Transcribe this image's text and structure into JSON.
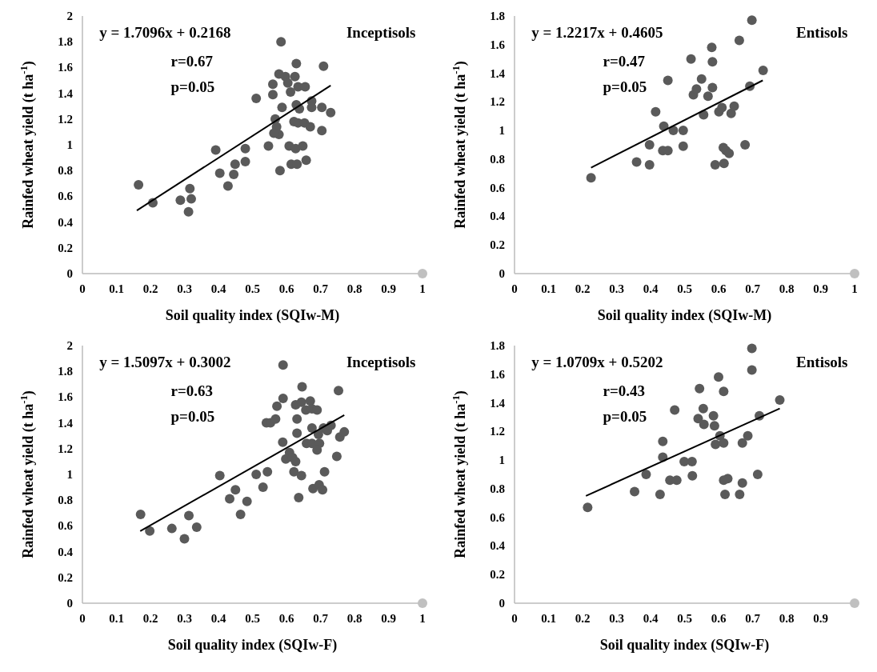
{
  "chart_data": [
    {
      "type": "scatter",
      "xlabel": "Soil quality  index (SQIw-M)",
      "ylabel": "Rainfed wheat yield (t ha$^{-1}$)",
      "annotations": [
        "y = 1.7096x + 0.2168",
        "r=0.67",
        "p=0.05",
        "Inceptisols"
      ],
      "xlim": [
        0,
        1
      ],
      "xticks": [
        0,
        0.1,
        0.2,
        0.3,
        0.4,
        0.5,
        0.6,
        0.7,
        0.8,
        0.9,
        1
      ],
      "ylim": [
        0,
        2
      ],
      "yticks": [
        0,
        0.2,
        0.4,
        0.6,
        0.8,
        1,
        1.2,
        1.4,
        1.6,
        1.8,
        2
      ],
      "series": [
        {
          "type": "scatter",
          "marker": "circle",
          "color": "#5a5a5a",
          "x": [
            0.165,
            0.207,
            0.288,
            0.316,
            0.32,
            0.312,
            0.392,
            0.404,
            0.445,
            0.449,
            0.428,
            0.479,
            0.479,
            0.511,
            0.547,
            0.56,
            0.56,
            0.578,
            0.584,
            0.587,
            0.567,
            0.571,
            0.578,
            0.563,
            0.581,
            0.597,
            0.604,
            0.612,
            0.625,
            0.629,
            0.634,
            0.655,
            0.629,
            0.638,
            0.622,
            0.634,
            0.653,
            0.67,
            0.674,
            0.674,
            0.704,
            0.73,
            0.704,
            0.709,
            0.608,
            0.627,
            0.648,
            0.614,
            0.631,
            0.658
          ],
          "values": [
            0.69,
            0.55,
            0.57,
            0.66,
            0.58,
            0.48,
            0.96,
            0.78,
            0.77,
            0.85,
            0.68,
            0.97,
            0.87,
            1.36,
            0.99,
            1.47,
            1.39,
            1.55,
            1.8,
            1.29,
            1.2,
            1.14,
            1.08,
            1.09,
            0.8,
            1.53,
            1.48,
            1.41,
            1.53,
            1.63,
            1.45,
            1.45,
            1.31,
            1.28,
            1.18,
            1.17,
            1.17,
            1.14,
            1.34,
            1.29,
            1.29,
            1.25,
            1.11,
            1.61,
            0.99,
            0.97,
            0.99,
            0.85,
            0.85,
            0.88
          ]
        },
        {
          "type": "line",
          "color": "#000000",
          "x": [
            0.16,
            0.73
          ],
          "values": [
            0.49,
            1.46
          ]
        },
        {
          "type": "scatter",
          "color": "#c0c0c0",
          "x": [
            1
          ],
          "values": [
            0
          ]
        }
      ]
    },
    {
      "type": "scatter",
      "xlabel": "Soil quality  index (SQIw-M)",
      "ylabel": "Rainfed wheat yield (t ha$^{-1}$)",
      "annotations": [
        "y = 1.2217x + 0.4605",
        "r=0.47",
        "p=0.05",
        "Entisols"
      ],
      "xlim": [
        0,
        1
      ],
      "xticks": [
        0,
        0.1,
        0.2,
        0.3,
        0.4,
        0.5,
        0.6,
        0.7,
        0.8,
        0.9,
        1
      ],
      "ylim": [
        0,
        1.8
      ],
      "yticks": [
        0,
        0.2,
        0.4,
        0.6,
        0.8,
        1,
        1.2,
        1.4,
        1.6,
        1.8
      ],
      "series": [
        {
          "type": "scatter",
          "marker": "circle",
          "color": "#5a5a5a",
          "x": [
            0.225,
            0.359,
            0.397,
            0.397,
            0.415,
            0.439,
            0.436,
            0.451,
            0.451,
            0.467,
            0.496,
            0.496,
            0.519,
            0.526,
            0.535,
            0.55,
            0.556,
            0.569,
            0.58,
            0.582,
            0.582,
            0.59,
            0.616,
            0.601,
            0.61,
            0.614,
            0.622,
            0.631,
            0.637,
            0.646,
            0.661,
            0.678,
            0.692,
            0.698,
            0.731
          ],
          "values": [
            0.67,
            0.78,
            0.76,
            0.9,
            1.13,
            1.03,
            0.86,
            0.86,
            1.35,
            1.0,
            1.0,
            0.89,
            1.5,
            1.25,
            1.29,
            1.36,
            1.11,
            1.24,
            1.58,
            1.48,
            1.3,
            0.76,
            0.77,
            1.13,
            1.16,
            0.88,
            0.86,
            0.84,
            1.12,
            1.17,
            1.63,
            0.9,
            1.31,
            1.77,
            1.42
          ]
        },
        {
          "type": "line",
          "color": "#000000",
          "x": [
            0.225,
            0.73
          ],
          "values": [
            0.74,
            1.35
          ]
        },
        {
          "type": "scatter",
          "color": "#c0c0c0",
          "x": [
            1
          ],
          "values": [
            0
          ]
        }
      ]
    },
    {
      "type": "scatter",
      "xlabel": "Soil quality  index (SQIw-F)",
      "ylabel": "Rainfed wheat yield (t ha$^{-1}$)",
      "annotations": [
        "y = 1.5097x + 0.3002",
        "r=0.63",
        "p=0.05",
        "Inceptisols"
      ],
      "xlim": [
        0,
        1
      ],
      "xticks": [
        0,
        0.1,
        0.2,
        0.3,
        0.4,
        0.5,
        0.6,
        0.7,
        0.8,
        0.9,
        1
      ],
      "ylim": [
        0,
        2
      ],
      "yticks": [
        0,
        0.2,
        0.4,
        0.6,
        0.8,
        1,
        1.2,
        1.4,
        1.6,
        1.8,
        2
      ],
      "series": [
        {
          "type": "scatter",
          "marker": "circle",
          "color": "#5a5a5a",
          "x": [
            0.171,
            0.198,
            0.263,
            0.3,
            0.313,
            0.336,
            0.404,
            0.433,
            0.45,
            0.465,
            0.484,
            0.511,
            0.531,
            0.544,
            0.541,
            0.553,
            0.568,
            0.572,
            0.59,
            0.59,
            0.589,
            0.598,
            0.609,
            0.618,
            0.627,
            0.622,
            0.644,
            0.636,
            0.631,
            0.631,
            0.627,
            0.646,
            0.644,
            0.657,
            0.67,
            0.675,
            0.69,
            0.659,
            0.675,
            0.675,
            0.694,
            0.697,
            0.69,
            0.709,
            0.72,
            0.731,
            0.712,
            0.678,
            0.696,
            0.706,
            0.748,
            0.753,
            0.757,
            0.77
          ],
          "values": [
            0.69,
            0.56,
            0.58,
            0.5,
            0.68,
            0.59,
            0.99,
            0.81,
            0.88,
            0.69,
            0.79,
            1.0,
            0.9,
            1.02,
            1.4,
            1.4,
            1.43,
            1.53,
            1.85,
            1.59,
            1.25,
            1.12,
            1.17,
            1.13,
            1.1,
            1.02,
            0.99,
            0.82,
            1.43,
            1.32,
            1.54,
            1.68,
            1.56,
            1.5,
            1.57,
            1.51,
            1.5,
            1.24,
            1.24,
            1.36,
            1.31,
            1.24,
            1.19,
            1.36,
            1.34,
            1.38,
            1.02,
            0.89,
            0.92,
            0.88,
            1.14,
            1.65,
            1.29,
            1.33
          ]
        },
        {
          "type": "line",
          "color": "#000000",
          "x": [
            0.17,
            0.77
          ],
          "values": [
            0.56,
            1.46
          ]
        },
        {
          "type": "scatter",
          "color": "#c0c0c0",
          "x": [
            1
          ],
          "values": [
            0
          ]
        }
      ]
    },
    {
      "type": "scatter",
      "xlabel": "Soil quality  index (SQIw-F)",
      "ylabel": "Rainfed wheat yield (t ha$^{-1}$)",
      "annotations": [
        "y = 1.0709x + 0.5202",
        "r=0.43",
        "p=0.05",
        "Entisols"
      ],
      "xlim": [
        0,
        1
      ],
      "xticks": [
        0,
        0.1,
        0.2,
        0.3,
        0.4,
        0.5,
        0.6,
        0.7,
        0.8,
        0.9
      ],
      "ylim": [
        0,
        1.8
      ],
      "yticks": [
        0,
        0.2,
        0.4,
        0.6,
        0.8,
        1,
        1.2,
        1.4,
        1.6,
        1.8
      ],
      "series": [
        {
          "type": "scatter",
          "marker": "circle",
          "color": "#5a5a5a",
          "x": [
            0.215,
            0.353,
            0.428,
            0.387,
            0.436,
            0.436,
            0.457,
            0.477,
            0.471,
            0.499,
            0.522,
            0.523,
            0.544,
            0.54,
            0.557,
            0.555,
            0.585,
            0.588,
            0.6,
            0.615,
            0.591,
            0.604,
            0.615,
            0.615,
            0.627,
            0.619,
            0.662,
            0.67,
            0.67,
            0.686,
            0.698,
            0.698,
            0.715,
            0.72,
            0.78
          ],
          "values": [
            0.67,
            0.78,
            0.76,
            0.9,
            1.13,
            1.02,
            0.86,
            0.86,
            1.35,
            0.99,
            0.99,
            0.89,
            1.5,
            1.29,
            1.25,
            1.36,
            1.31,
            1.24,
            1.58,
            1.48,
            1.11,
            1.17,
            1.12,
            0.86,
            0.87,
            0.76,
            0.76,
            0.84,
            1.12,
            1.17,
            1.78,
            1.63,
            0.9,
            1.31,
            1.42
          ]
        },
        {
          "type": "line",
          "color": "#000000",
          "x": [
            0.21,
            0.78
          ],
          "values": [
            0.75,
            1.36
          ]
        },
        {
          "type": "scatter",
          "color": "#c0c0c0",
          "x": [
            1
          ],
          "values": [
            0
          ]
        }
      ]
    }
  ]
}
